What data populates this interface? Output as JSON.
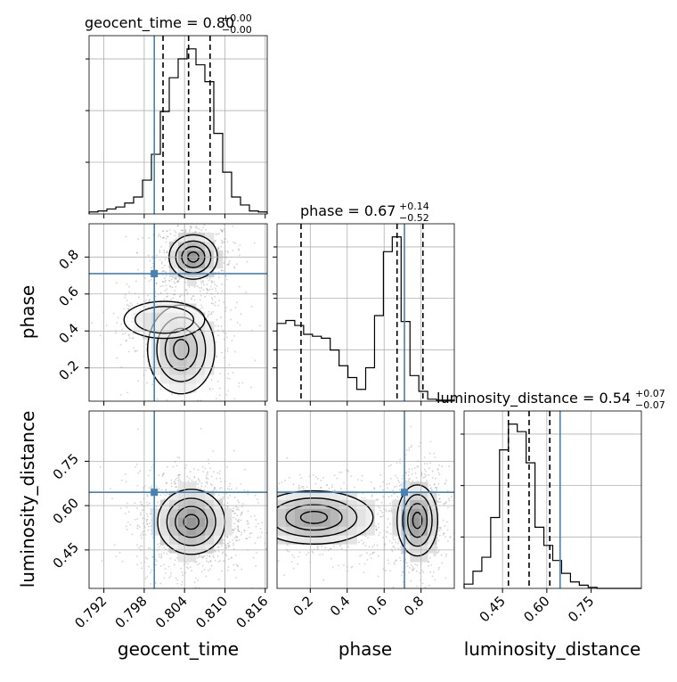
{
  "chart_data": {
    "type": "corner",
    "parameters": [
      "geocent_time",
      "phase",
      "luminosity_distance"
    ],
    "titles": [
      {
        "label": "geocent_time = 0.80",
        "sup": "+0.00",
        "sub": "−0.00"
      },
      {
        "label": "phase = 0.67",
        "sup": "+0.14",
        "sub": "−0.52"
      },
      {
        "label": "luminosity_distance = 0.54",
        "sup": "+0.07",
        "sub": "−0.07"
      }
    ],
    "axis_labels": {
      "x": [
        "geocent_time",
        "phase",
        "luminosity_distance"
      ],
      "y": [
        "phase",
        "luminosity_distance"
      ]
    },
    "ranges": {
      "geocent_time": [
        0.7898,
        0.8163
      ],
      "phase": [
        0.02,
        0.98
      ],
      "luminosity_distance": [
        0.32,
        0.92
      ]
    },
    "ticks": {
      "geocent_time": {
        "values": [
          0.792,
          0.798,
          0.804,
          0.81,
          0.816
        ],
        "labels": [
          "0.792",
          "0.798",
          "0.804",
          "0.810",
          "0.816"
        ]
      },
      "phase_x": {
        "values": [
          0.2,
          0.4,
          0.6,
          0.8
        ],
        "labels": [
          "0.2",
          "0.4",
          "0.6",
          "0.8"
        ]
      },
      "phase_y": {
        "values": [
          0.2,
          0.4,
          0.6,
          0.8
        ],
        "labels": [
          "0.2",
          "0.4",
          "0.6",
          "0.8"
        ]
      },
      "luminosity_distance_x": {
        "values": [
          0.45,
          0.6,
          0.75
        ],
        "labels": [
          "0.45",
          "0.60",
          "0.75"
        ]
      },
      "luminosity_distance_y": {
        "values": [
          0.45,
          0.6,
          0.75
        ],
        "labels": [
          "0.45",
          "0.60",
          "0.75"
        ]
      }
    },
    "truth": {
      "geocent_time": 0.7995,
      "phase": 0.71,
      "luminosity_distance": 0.645
    },
    "quantiles": {
      "geocent_time": [
        0.8008,
        0.8046,
        0.8078
      ],
      "phase": [
        0.15,
        0.67,
        0.81
      ],
      "luminosity_distance": [
        0.47,
        0.54,
        0.61
      ]
    },
    "histograms": {
      "geocent_time": {
        "edges_range": [
          0.7898,
          0.8163
        ],
        "counts": [
          2,
          3,
          5,
          7,
          11,
          17,
          34,
          60,
          103,
          137,
          156,
          166,
          150,
          133,
          81,
          42,
          17,
          9,
          3,
          2
        ]
      },
      "phase": {
        "edges_range": [
          0.02,
          0.98
        ],
        "counts": [
          79,
          82,
          77,
          68,
          66,
          64,
          52,
          36,
          24,
          12,
          34,
          87,
          152,
          167,
          81,
          26,
          10,
          2,
          1,
          1
        ]
      },
      "luminosity_distance": {
        "edges_range": [
          0.32,
          0.92
        ],
        "counts": [
          4,
          16,
          29,
          66,
          129,
          153,
          146,
          117,
          57,
          40,
          26,
          14,
          6,
          3,
          1,
          0,
          0,
          0,
          0,
          0
        ]
      }
    },
    "grid": true
  }
}
